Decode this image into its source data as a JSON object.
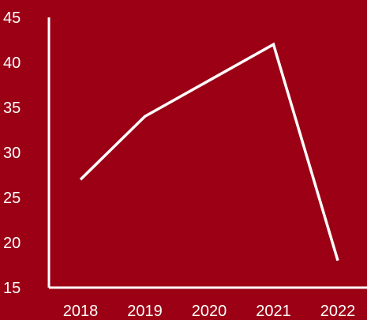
{
  "colors": {
    "background": "#9b0014",
    "foreground": "#ffffff"
  },
  "chart_data": {
    "type": "line",
    "title": "",
    "xlabel": "",
    "ylabel": "",
    "categories": [
      "2018",
      "2019",
      "2020",
      "2021",
      "2022"
    ],
    "series": [
      {
        "values": [
          27,
          34,
          38,
          42,
          18
        ]
      }
    ],
    "ylim": [
      15,
      45
    ],
    "yticks": [
      15,
      20,
      25,
      30,
      35,
      40,
      45
    ],
    "grid": false,
    "legend": "none"
  }
}
